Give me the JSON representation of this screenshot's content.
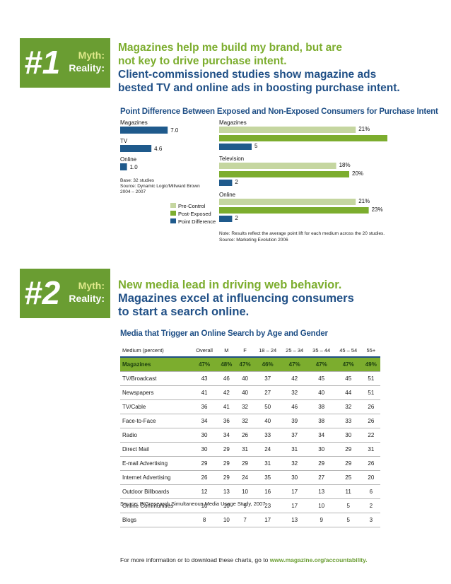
{
  "sections": [
    {
      "number": "#1",
      "myth_label": "Myth:",
      "reality_label": "Reality:",
      "myth_text_1": "Magazines help me build my brand, but are",
      "myth_text_2": "not key to drive purchase intent.",
      "reality_text_1": "Client-commissioned studies show magazine ads",
      "reality_text_2": "bested TV and online ads in boosting purchase intent."
    },
    {
      "number": "#2",
      "myth_label": "Myth:",
      "reality_label": "Reality:",
      "myth_text_1": "New media lead in driving web behavior.",
      "reality_text_1": "Magazines excel at influencing consumers",
      "reality_text_2": "to start a search online."
    }
  ],
  "chart1_title": "Point Difference Between Exposed and Non-Exposed Consumers for Purchase Intent",
  "chart_data": [
    {
      "type": "bar",
      "orientation": "horizontal",
      "categories": [
        "Magazines",
        "TV",
        "Online"
      ],
      "values": [
        7.0,
        4.6,
        1.0
      ],
      "value_labels": [
        "7.0",
        "4.6",
        "1.0"
      ],
      "notes": [
        "Base: 32 studies",
        "Source: Dynamic Logic/Millward Brown",
        "2004 – 2007"
      ],
      "color": "#1f5a8c"
    },
    {
      "type": "bar",
      "orientation": "horizontal",
      "groups": [
        "Magazines",
        "Television",
        "Online"
      ],
      "series": [
        {
          "name": "Pre-Control",
          "values": [
            21,
            18,
            21
          ],
          "labels": [
            "21%",
            "18%",
            "21%"
          ],
          "color": "#c5d6a0"
        },
        {
          "name": "Post-Exposed",
          "values": [
            26,
            20,
            23
          ],
          "labels": [
            "26%",
            "20%",
            "23%"
          ],
          "color": "#7cad2e"
        },
        {
          "name": "Point Difference",
          "values": [
            5,
            2,
            2
          ],
          "labels": [
            "5",
            "2",
            "2"
          ],
          "color": "#1f5a8c"
        }
      ],
      "notes": [
        "Note: Results reflect the average point lift for each medium across the 20 studies.",
        "Source: Marketing Evolution 2006"
      ]
    },
    {
      "type": "table",
      "title": "Media that Trigger an Online Search by Age and Gender",
      "columns": [
        "Medium (percent)",
        "Overall",
        "M",
        "F",
        "18 – 24",
        "25 – 34",
        "35 – 44",
        "45 – 54",
        "55+"
      ],
      "rows": [
        [
          "Magazines",
          "47%",
          "48%",
          "47%",
          "46%",
          "47%",
          "47%",
          "47%",
          "49%"
        ],
        [
          "TV/Broadcast",
          "43",
          "46",
          "40",
          "37",
          "42",
          "45",
          "45",
          "51"
        ],
        [
          "Newspapers",
          "41",
          "42",
          "40",
          "27",
          "32",
          "40",
          "44",
          "51"
        ],
        [
          "TV/Cable",
          "36",
          "41",
          "32",
          "50",
          "46",
          "38",
          "32",
          "26"
        ],
        [
          "Face-to-Face",
          "34",
          "36",
          "32",
          "40",
          "39",
          "38",
          "33",
          "26"
        ],
        [
          "Radio",
          "30",
          "34",
          "26",
          "33",
          "37",
          "34",
          "30",
          "22"
        ],
        [
          "Direct Mail",
          "30",
          "29",
          "31",
          "24",
          "31",
          "30",
          "29",
          "31"
        ],
        [
          "E-mail Advertising",
          "29",
          "29",
          "29",
          "31",
          "32",
          "29",
          "29",
          "26"
        ],
        [
          "Internet Advertising",
          "26",
          "29",
          "24",
          "35",
          "30",
          "27",
          "25",
          "20"
        ],
        [
          "Outdoor Billboards",
          "12",
          "13",
          "10",
          "16",
          "17",
          "13",
          "11",
          "6"
        ],
        [
          "Online Communities",
          "10",
          "10",
          "9",
          "23",
          "17",
          "10",
          "5",
          "2"
        ],
        [
          "Blogs",
          "8",
          "10",
          "7",
          "17",
          "13",
          "9",
          "5",
          "3"
        ]
      ],
      "source": "Source: BIGresearch Simultaneous Media Usage Study, 2007"
    }
  ],
  "footer": {
    "text": "For more information or to download these charts, go to",
    "link": "www.magazine.org/accountability."
  }
}
